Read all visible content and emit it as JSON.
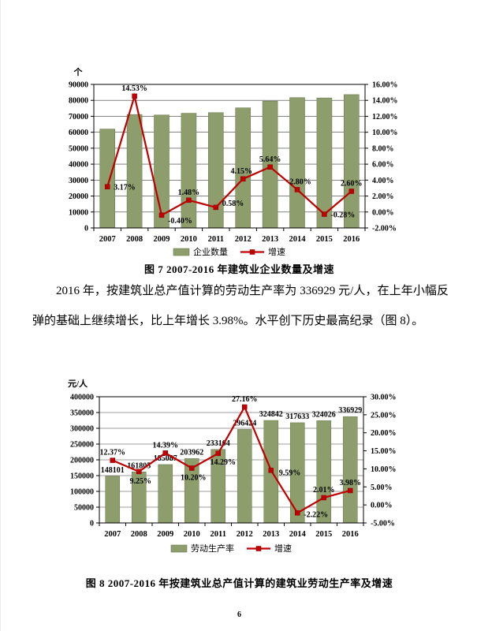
{
  "page": {
    "number": "6"
  },
  "paragraph": {
    "text": "2016 年，按建筑业总产值计算的劳动生产率为 336929 元/人，在上年小幅反弹的基础上继续增长，比上年增长 3.98%。水平创下历史最高纪录（图 8）。"
  },
  "colors": {
    "bar_fill": "#8d9e6c",
    "bar_stroke": "#6e7d52",
    "line": "#c00000",
    "marker_stroke": "#8a0000",
    "grid": "#3a3a3a",
    "axis": "#000000"
  },
  "chart_data": [
    {
      "id": "fig7",
      "type": "bar",
      "combo": "bar+line",
      "title": "图 7  2007-2016 年建筑业企业数量及增速",
      "unit_left": "个",
      "categories": [
        "2007",
        "2008",
        "2009",
        "2010",
        "2011",
        "2012",
        "2013",
        "2014",
        "2015",
        "2016"
      ],
      "series": [
        {
          "name": "企业数量",
          "kind": "bar",
          "axis": "left",
          "values": [
            62000,
            71100,
            70800,
            71900,
            72300,
            75300,
            79500,
            81700,
            81500,
            83600
          ],
          "labels_visible": false
        },
        {
          "name": "增速",
          "kind": "line",
          "axis": "right",
          "values": [
            3.17,
            14.53,
            -0.4,
            1.48,
            0.58,
            4.15,
            5.64,
            2.8,
            -0.28,
            2.6
          ],
          "labels": [
            "3.17%",
            "14.53%",
            "-0.40%",
            "1.48%",
            "0.58%",
            "4.15%",
            "5.64%",
            "2.80%",
            "-0.28%",
            "2.60%"
          ],
          "labels_visible": true
        }
      ],
      "left_axis": {
        "min": 0,
        "max": 90000,
        "step": 10000
      },
      "right_axis": {
        "min": -2,
        "max": 16,
        "step": 2,
        "format": "percent"
      },
      "grid": true,
      "legend_position": "bottom"
    },
    {
      "id": "fig8",
      "type": "bar",
      "combo": "bar+line",
      "title": "图 8  2007-2016 年按建筑业总产值计算的建筑业劳动生产率及增速",
      "unit_left": "元/人",
      "categories": [
        "2007",
        "2008",
        "2009",
        "2010",
        "2011",
        "2012",
        "2013",
        "2014",
        "2015",
        "2016"
      ],
      "series": [
        {
          "name": "劳动生产率",
          "kind": "bar",
          "axis": "left",
          "values": [
            148101,
            161805,
            185087,
            203962,
            233104,
            296424,
            324842,
            317633,
            324026,
            336929
          ],
          "labels": [
            "148101",
            "161805",
            "185087",
            "203962",
            "233104",
            "296424",
            "324842",
            "317633",
            "324026",
            "336929"
          ],
          "labels_visible": true
        },
        {
          "name": "增速",
          "kind": "line",
          "axis": "right",
          "values": [
            12.37,
            9.25,
            14.39,
            10.2,
            14.29,
            27.16,
            9.59,
            -2.22,
            2.01,
            3.98
          ],
          "labels": [
            "12.37%",
            "9.25%",
            "14.39%",
            "10.20%",
            "14.29%",
            "27.16%",
            "9.59%",
            "-2.22%",
            "2.01%",
            "3.98%"
          ],
          "labels_visible": true
        }
      ],
      "left_axis": {
        "min": 0,
        "max": 400000,
        "step": 50000
      },
      "right_axis": {
        "min": -5,
        "max": 30,
        "step": 5,
        "format": "percent"
      },
      "grid": true,
      "legend_position": "bottom"
    }
  ]
}
